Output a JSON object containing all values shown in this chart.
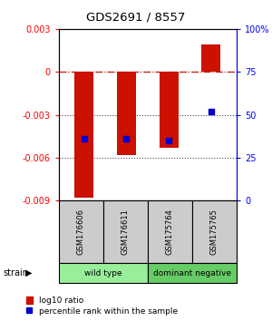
{
  "title": "GDS2691 / 8557",
  "samples": [
    "GSM176606",
    "GSM176611",
    "GSM175764",
    "GSM175765"
  ],
  "log10_ratio": [
    -0.0088,
    -0.0058,
    -0.0053,
    0.0019
  ],
  "percentile_rank": [
    36,
    36,
    35,
    52
  ],
  "ylim_left": [
    -0.009,
    0.003
  ],
  "ylim_right": [
    0,
    100
  ],
  "yticks_left": [
    0.003,
    0,
    -0.003,
    -0.006,
    -0.009
  ],
  "yticks_right": [
    100,
    75,
    50,
    25,
    0
  ],
  "ytick_labels_left": [
    "0.003",
    "0",
    "-0.003",
    "-0.006",
    "-0.009"
  ],
  "ytick_labels_right": [
    "100%",
    "75",
    "50",
    "25",
    "0"
  ],
  "bar_color": "#CC1100",
  "dot_color": "#0000CC",
  "zero_line_color": "#CC1100",
  "dotted_line_color": "#444444",
  "bar_width": 0.45,
  "legend_labels": [
    "log10 ratio",
    "percentile rank within the sample"
  ],
  "wild_type_color": "#99EE99",
  "dominant_neg_color": "#66CC66",
  "sample_box_color": "#CCCCCC"
}
